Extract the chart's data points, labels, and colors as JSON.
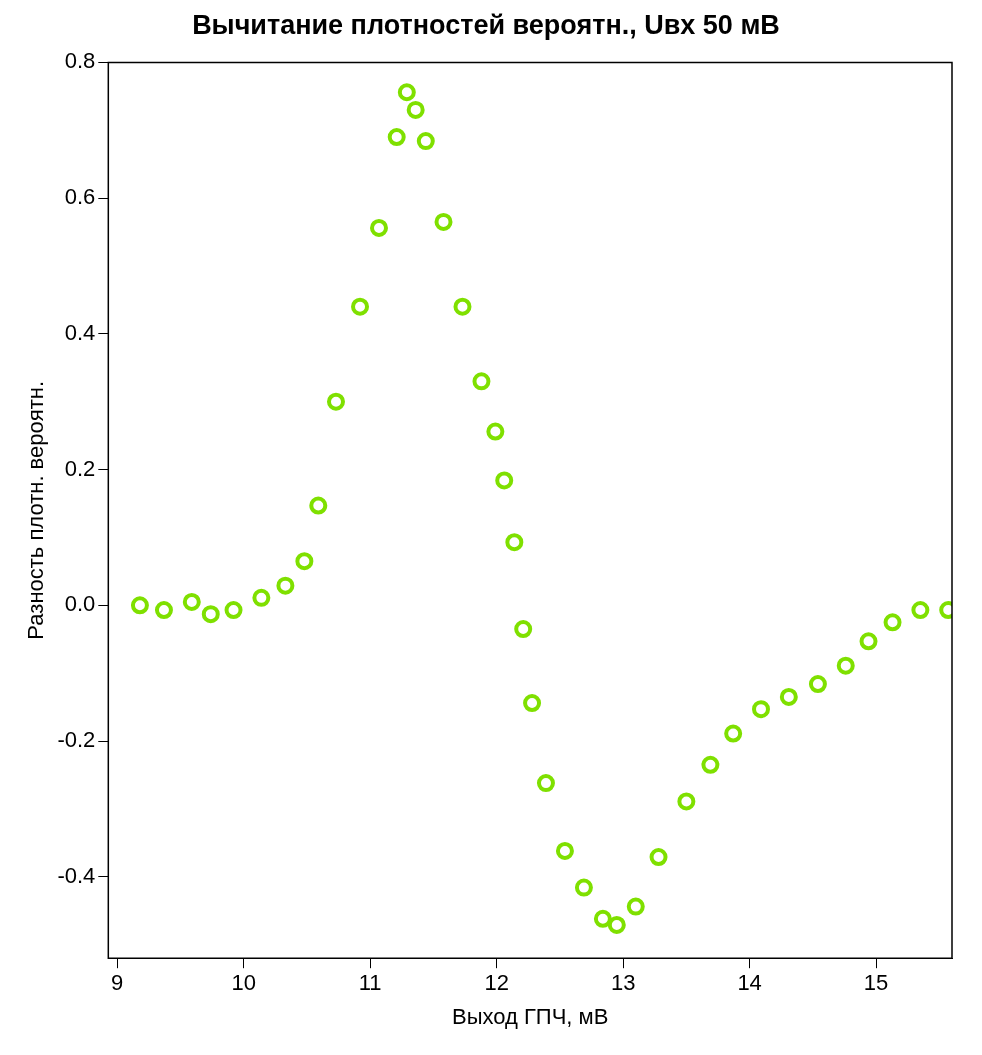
{
  "chart_data": {
    "type": "scatter",
    "title": "Вычитание плотностей вероятн., Uвх 50 мВ",
    "xlabel": "Выход ГПЧ, мВ",
    "ylabel": "Разность плотн. вероятн.",
    "x": [
      9.18,
      9.37,
      9.59,
      9.74,
      9.92,
      10.14,
      10.33,
      10.48,
      10.59,
      10.73,
      10.92,
      11.07,
      11.21,
      11.29,
      11.36,
      11.44,
      11.58,
      11.73,
      11.88,
      11.99,
      12.06,
      12.14,
      12.21,
      12.28,
      12.39,
      12.54,
      12.69,
      12.84,
      12.95,
      13.1,
      13.28,
      13.5,
      13.69,
      13.87,
      14.09,
      14.31,
      14.54,
      14.76,
      14.94,
      15.13,
      15.35,
      15.57
    ],
    "values": [
      0.0,
      -0.007,
      0.005,
      -0.013,
      -0.007,
      0.011,
      0.029,
      0.065,
      0.147,
      0.3,
      0.44,
      0.556,
      0.69,
      0.756,
      0.73,
      0.684,
      0.565,
      0.44,
      0.33,
      0.256,
      0.184,
      0.093,
      -0.035,
      -0.144,
      -0.262,
      -0.362,
      -0.416,
      -0.462,
      -0.471,
      -0.444,
      -0.371,
      -0.289,
      -0.235,
      -0.189,
      -0.153,
      -0.135,
      -0.116,
      -0.089,
      -0.053,
      -0.025,
      -0.007,
      -0.007
    ],
    "color": "#7fe000",
    "marker": "circle",
    "xlim": [
      8.93,
      15.6
    ],
    "xticks": [
      9,
      10,
      11,
      12,
      13,
      14,
      15
    ],
    "ylim": [
      -0.52,
      0.8
    ],
    "yticks": [
      -0.4,
      -0.2,
      {
        "value": 0,
        "label": "0.0"
      },
      0.2,
      0.4,
      0.6,
      0.8
    ],
    "grid": false,
    "legend": false
  }
}
